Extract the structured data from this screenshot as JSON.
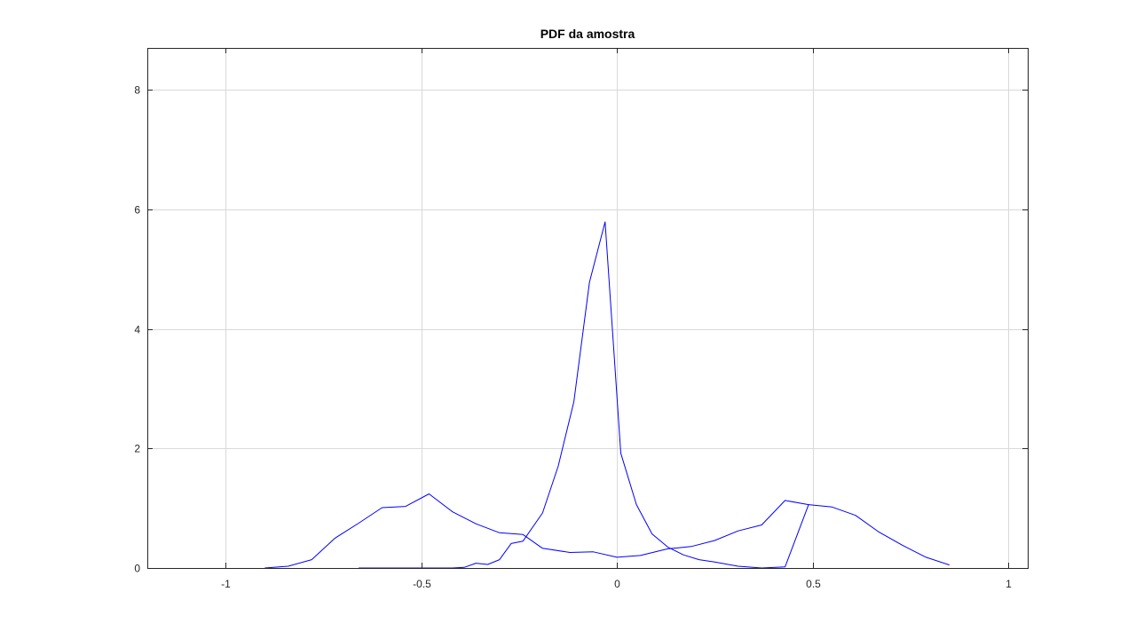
{
  "chart_data": {
    "type": "line",
    "title": "PDF da amostra",
    "xlabel": "",
    "ylabel": "",
    "xlim": [
      -1.2,
      1.05
    ],
    "ylim": [
      0,
      8.7
    ],
    "xticks": [
      -1,
      -0.5,
      0,
      0.5,
      1
    ],
    "xtick_labels": [
      "-1",
      "-0.5",
      "0",
      "0.5",
      "1"
    ],
    "yticks": [
      0,
      2,
      4,
      6,
      8
    ],
    "ytick_labels": [
      "0",
      "2",
      "4",
      "6",
      "8"
    ],
    "grid": true,
    "line_color": "#0000ff",
    "grid_color": "#d9d9d9",
    "series": [
      {
        "x": [
          -0.9,
          -0.84,
          -0.78,
          -0.72,
          -0.66,
          -0.6,
          -0.54,
          -0.48,
          -0.42,
          -0.36,
          -0.3,
          -0.24,
          -0.19,
          -0.12,
          -0.06,
          0.0,
          0.06,
          0.13,
          0.19,
          0.25,
          0.31,
          0.37,
          0.43,
          0.49
        ],
        "y": [
          0.0,
          0.03,
          0.14,
          0.5,
          0.75,
          1.01,
          1.03,
          1.24,
          0.94,
          0.74,
          0.59,
          0.56,
          0.33,
          0.26,
          0.27,
          0.18,
          0.21,
          0.32,
          0.36,
          0.46,
          0.62,
          0.72,
          1.13,
          1.06
        ]
      },
      {
        "x": [
          -0.66,
          -0.6,
          -0.54,
          -0.48,
          -0.42,
          -0.39,
          -0.36,
          -0.33,
          -0.3,
          -0.27,
          -0.24,
          -0.19,
          -0.15,
          -0.11,
          -0.07,
          -0.03,
          0.01,
          0.05,
          0.09,
          0.13,
          0.17,
          0.21,
          0.25,
          0.31,
          0.37,
          0.43,
          0.49,
          0.55,
          0.61,
          0.67,
          0.73,
          0.79,
          0.85
        ],
        "y": [
          0.0,
          0.0,
          0.0,
          0.0,
          0.0,
          0.01,
          0.08,
          0.06,
          0.14,
          0.41,
          0.45,
          0.92,
          1.7,
          2.78,
          4.78,
          5.79,
          1.92,
          1.06,
          0.57,
          0.35,
          0.22,
          0.14,
          0.1,
          0.03,
          0.0,
          0.02,
          1.06,
          1.02,
          0.88,
          0.6,
          0.38,
          0.18,
          0.05
        ]
      }
    ]
  }
}
